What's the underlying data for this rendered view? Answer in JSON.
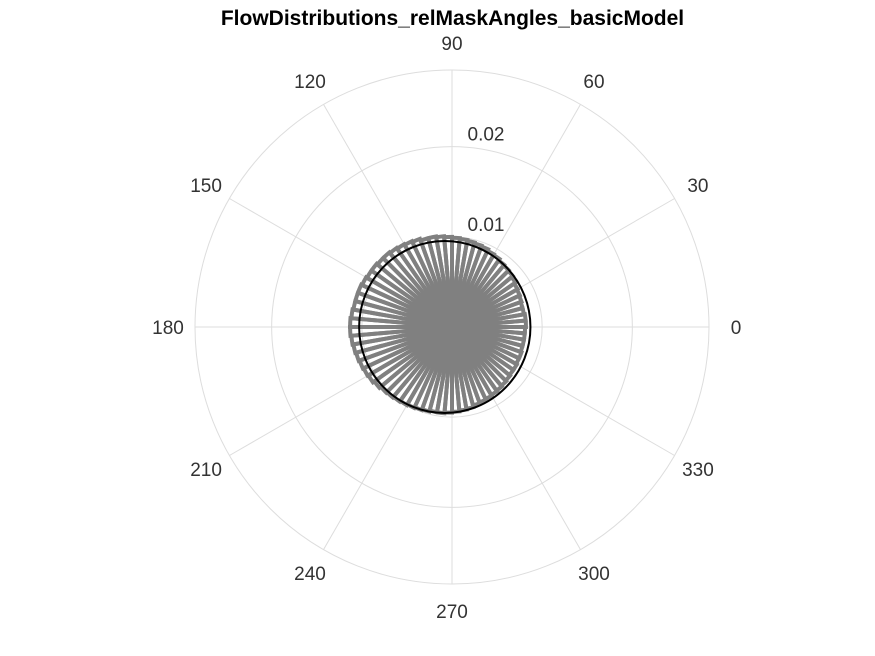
{
  "chart_data": {
    "type": "polar-histogram",
    "title": "FlowDistributions_relMaskAngles_basicModel",
    "angle_ticks": [
      "0",
      "30",
      "60",
      "90",
      "120",
      "150",
      "180",
      "210",
      "240",
      "270",
      "300",
      "330"
    ],
    "angle_tick_values": [
      0,
      30,
      60,
      90,
      120,
      150,
      180,
      210,
      240,
      270,
      300,
      330
    ],
    "r_ticks": [
      "0.01",
      "0.02"
    ],
    "r_tick_values": [
      0.01,
      0.02
    ],
    "r_max": 0.0285,
    "bin_width_deg": 5,
    "bin_edges_deg": [
      0,
      5,
      10,
      15,
      20,
      25,
      30,
      35,
      40,
      45,
      50,
      55,
      60,
      65,
      70,
      75,
      80,
      85,
      90,
      95,
      100,
      105,
      110,
      115,
      120,
      125,
      130,
      135,
      140,
      145,
      150,
      155,
      160,
      165,
      170,
      175,
      180,
      185,
      190,
      195,
      200,
      205,
      210,
      215,
      220,
      225,
      230,
      235,
      240,
      245,
      250,
      255,
      260,
      265,
      270,
      275,
      280,
      285,
      290,
      295,
      300,
      305,
      310,
      315,
      320,
      325,
      330,
      335,
      340,
      345,
      350,
      355
    ],
    "bin_values": [
      0.0082,
      0.0082,
      0.0081,
      0.0081,
      0.0082,
      0.0083,
      0.0084,
      0.0086,
      0.0088,
      0.0089,
      0.009,
      0.0092,
      0.0093,
      0.0095,
      0.0096,
      0.0097,
      0.0098,
      0.0099,
      0.01,
      0.0101,
      0.0102,
      0.0102,
      0.0104,
      0.0105,
      0.0106,
      0.0107,
      0.0108,
      0.0108,
      0.0109,
      0.0109,
      0.011,
      0.0111,
      0.0111,
      0.0111,
      0.0112,
      0.0113,
      0.0113,
      0.0112,
      0.0111,
      0.011,
      0.0109,
      0.0108,
      0.0107,
      0.0105,
      0.0103,
      0.0102,
      0.0101,
      0.01,
      0.0099,
      0.0098,
      0.0097,
      0.0096,
      0.0096,
      0.0095,
      0.0094,
      0.0093,
      0.0092,
      0.009,
      0.0089,
      0.0088,
      0.0087,
      0.0086,
      0.0085,
      0.0084,
      0.0083,
      0.0083,
      0.0082,
      0.0082,
      0.0081,
      0.0081,
      0.0081,
      0.0081
    ],
    "fit_curve": {
      "type": "shifted-circle",
      "mean_direction_deg": 180,
      "r_at_0": 0.0087,
      "r_at_90": 0.0095,
      "r_at_180": 0.0103
    },
    "inner_fill_radius": 0.0035
  }
}
